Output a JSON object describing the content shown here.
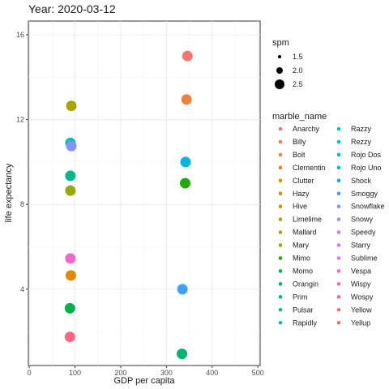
{
  "chart_data": {
    "type": "scatter",
    "title": "Year: 2020-03-12",
    "xlabel": "GDP per capita",
    "ylabel": "life expectancy",
    "xlim": [
      -2,
      505
    ],
    "ylim": [
      0.4,
      16.65
    ],
    "x_ticks": [
      0,
      100,
      200,
      300,
      400,
      500
    ],
    "y_ticks": [
      4,
      8,
      12,
      16
    ],
    "grid": true,
    "size_legend": {
      "title": "spm",
      "entries": [
        {
          "label": "1.5",
          "value": 1.5
        },
        {
          "label": "2.0",
          "value": 2.0
        },
        {
          "label": "2.5",
          "value": 2.5
        }
      ]
    },
    "color_legend": {
      "title": "marble_name",
      "columns": 2,
      "entries": [
        {
          "name": "Anarchy",
          "color": "#F8766D"
        },
        {
          "name": "Billy",
          "color": "#F37B59"
        },
        {
          "name": "Bolt",
          "color": "#ED813E"
        },
        {
          "name": "Clementin",
          "color": "#E58700"
        },
        {
          "name": "Clutter",
          "color": "#DC8D00"
        },
        {
          "name": "Hazy",
          "color": "#D29300"
        },
        {
          "name": "Hive",
          "color": "#C69900"
        },
        {
          "name": "Limelime",
          "color": "#B99E00"
        },
        {
          "name": "Mallard",
          "color": "#ABA300"
        },
        {
          "name": "Mary",
          "color": "#9AA800"
        },
        {
          "name": "Mimo",
          "color": "#1EAB00"
        },
        {
          "name": "Momo",
          "color": "#00B14B"
        },
        {
          "name": "Orangin",
          "color": "#00B470"
        },
        {
          "name": "Prim",
          "color": "#00B68B"
        },
        {
          "name": "Pulsar",
          "color": "#00BA9E"
        },
        {
          "name": "Rapidly",
          "color": "#00BCB0"
        },
        {
          "name": "Razzy",
          "color": "#00BDC0"
        },
        {
          "name": "Rezzy",
          "color": "#00BCCE"
        },
        {
          "name": "Rojo Dos",
          "color": "#00B9DA"
        },
        {
          "name": "Rojo Uno",
          "color": "#00B3E6"
        },
        {
          "name": "Shock",
          "color": "#0CABF0"
        },
        {
          "name": "Smoggy",
          "color": "#3FA1FF"
        },
        {
          "name": "Snowflake",
          "color": "#7F96FF"
        },
        {
          "name": "Snowy",
          "color": "#A58AFF"
        },
        {
          "name": "Speedy",
          "color": "#C17FF5"
        },
        {
          "name": "Starry",
          "color": "#D874FD"
        },
        {
          "name": "Sublime",
          "color": "#E96EE8"
        },
        {
          "name": "Vespa",
          "color": "#F566D1"
        },
        {
          "name": "Wispy",
          "color": "#FD61B8"
        },
        {
          "name": "Wospy",
          "color": "#FF629D"
        },
        {
          "name": "Yellow",
          "color": "#FF6781"
        },
        {
          "name": "Yellup",
          "color": "#FC6B73"
        }
      ]
    },
    "points": [
      {
        "x": 346,
        "y": 15.0,
        "color": "#F8766D"
      },
      {
        "x": 344,
        "y": 12.95,
        "color": "#ED813E"
      },
      {
        "x": 92,
        "y": 12.65,
        "color": "#ABA300"
      },
      {
        "x": 90,
        "y": 10.9,
        "color": "#00BCB0"
      },
      {
        "x": 92,
        "y": 10.75,
        "color": "#7F96FF"
      },
      {
        "x": 342,
        "y": 10.0,
        "color": "#00B3E6"
      },
      {
        "x": 90,
        "y": 9.35,
        "color": "#00B68B"
      },
      {
        "x": 341,
        "y": 9.0,
        "color": "#1EAB00"
      },
      {
        "x": 90,
        "y": 8.65,
        "color": "#9AA800"
      },
      {
        "x": 90,
        "y": 5.45,
        "color": "#F566D1"
      },
      {
        "x": 91,
        "y": 4.65,
        "color": "#E58700"
      },
      {
        "x": 335,
        "y": 4.0,
        "color": "#3FA1FF"
      },
      {
        "x": 89,
        "y": 3.1,
        "color": "#00B14B"
      },
      {
        "x": 89,
        "y": 1.75,
        "color": "#FF6781"
      },
      {
        "x": 334,
        "y": 0.95,
        "color": "#00B470"
      }
    ]
  }
}
